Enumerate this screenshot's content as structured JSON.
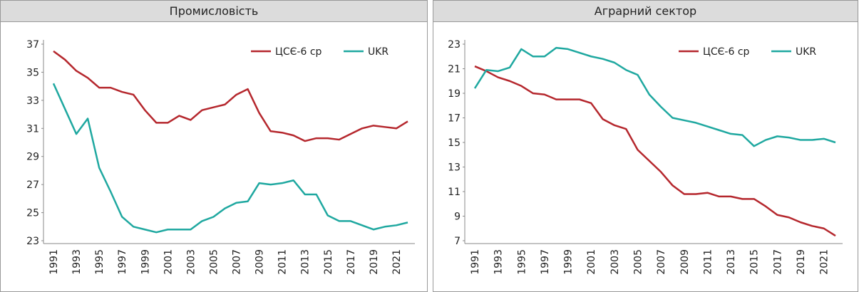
{
  "chart_data": [
    {
      "type": "line",
      "title": "Промисловість",
      "categories": [
        "1991",
        null,
        "1993",
        null,
        "1995",
        null,
        "1997",
        null,
        "1999",
        null,
        "2001",
        null,
        "2003",
        null,
        "2005",
        null,
        "2007",
        null,
        "2009",
        null,
        "2011",
        null,
        "2013",
        null,
        "2015",
        null,
        "2017",
        null,
        "2019",
        null,
        "2021",
        null
      ],
      "series": [
        {
          "name": "ЦСЄ-6 ср",
          "color": "#b5272d",
          "values": [
            36.5,
            35.9,
            35.1,
            34.6,
            33.9,
            33.9,
            33.6,
            33.4,
            32.3,
            31.4,
            31.4,
            31.9,
            31.6,
            32.3,
            32.5,
            32.7,
            33.4,
            33.8,
            32.1,
            30.8,
            30.7,
            30.5,
            30.1,
            30.3,
            30.3,
            30.2,
            30.6,
            31.0,
            31.2,
            31.1,
            31.0,
            31.5
          ]
        },
        {
          "name": "UKR",
          "color": "#1fa8a0",
          "values": [
            34.2,
            32.4,
            30.6,
            31.7,
            28.2,
            26.5,
            24.7,
            24.0,
            23.8,
            23.6,
            23.8,
            23.8,
            23.8,
            24.4,
            24.7,
            25.3,
            25.7,
            25.8,
            27.1,
            27.0,
            27.1,
            27.3,
            26.3,
            26.3,
            24.8,
            24.4,
            24.4,
            24.1,
            23.8,
            24.0,
            24.1,
            24.3
          ]
        }
      ],
      "ylim": [
        23,
        37
      ],
      "yticks": [
        23,
        25,
        27,
        29,
        31,
        33,
        35,
        37
      ],
      "legend": "top-right"
    },
    {
      "type": "line",
      "title": "Аграрний сектор",
      "categories": [
        "1991",
        null,
        "1993",
        null,
        "1995",
        null,
        "1997",
        null,
        "1999",
        null,
        "2001",
        null,
        "2003",
        null,
        "2005",
        null,
        "2007",
        null,
        "2009",
        null,
        "2011",
        null,
        "2013",
        null,
        "2015",
        null,
        "2017",
        null,
        "2019",
        null,
        "2021",
        null
      ],
      "series": [
        {
          "name": "ЦСЄ-6 ср",
          "color": "#b5272d",
          "values": [
            21.2,
            20.8,
            20.3,
            20.0,
            19.6,
            19.0,
            18.9,
            18.5,
            18.5,
            18.5,
            18.2,
            16.9,
            16.4,
            16.1,
            14.4,
            13.5,
            12.6,
            11.5,
            10.8,
            10.8,
            10.9,
            10.6,
            10.6,
            10.4,
            10.4,
            9.8,
            9.1,
            8.9,
            8.5,
            8.2,
            8.0,
            7.4
          ]
        },
        {
          "name": "UKR",
          "color": "#1fa8a0",
          "values": [
            19.4,
            20.9,
            20.8,
            21.1,
            22.6,
            22.0,
            22.0,
            22.7,
            22.6,
            22.3,
            22.0,
            21.8,
            21.5,
            20.9,
            20.5,
            18.9,
            17.9,
            17.0,
            16.8,
            16.6,
            16.3,
            16.0,
            15.7,
            15.6,
            14.7,
            15.2,
            15.5,
            15.4,
            15.2,
            15.2,
            15.3,
            15.0
          ]
        }
      ],
      "ylim": [
        7,
        23
      ],
      "yticks": [
        7,
        9,
        11,
        13,
        15,
        17,
        19,
        21,
        23
      ],
      "legend": "top-right"
    }
  ]
}
